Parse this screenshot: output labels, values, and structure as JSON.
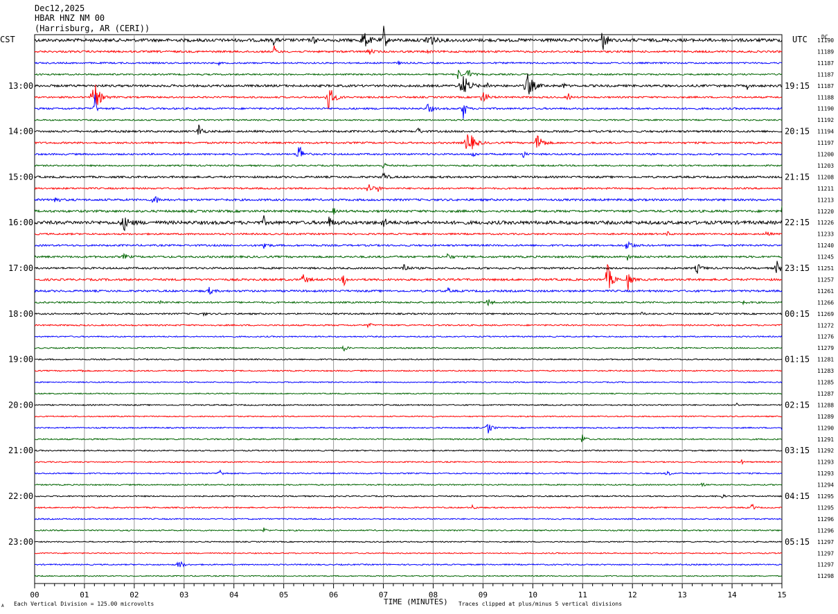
{
  "header": {
    "date": "Dec12,2025",
    "station": "HBAR HNZ NM 00",
    "location": "(Harrisburg, AR (CERI))"
  },
  "left_axis_title": "CST",
  "right_axis_title": "UTC",
  "dc_label": "DC",
  "footer": {
    "xlabel": "TIME (MINUTES)",
    "scale_note": "Each Vertical Division =  125.00 microvolts",
    "clip_note": "Traces clipped at plus/minus 5 vertical divisions",
    "corner_mark": "A"
  },
  "colors": {
    "cycle": [
      "#000000",
      "#ff0000",
      "#0000ff",
      "#006400"
    ],
    "grid": "#999999"
  },
  "chart_data": {
    "type": "line",
    "title": "HBAR HNZ NM 00",
    "xlabel": "TIME (MINUTES)",
    "xlim": [
      0,
      15
    ],
    "x_ticks": [
      "00",
      "01",
      "02",
      "03",
      "04",
      "05",
      "06",
      "07",
      "08",
      "09",
      "10",
      "11",
      "12",
      "13",
      "14",
      "15"
    ],
    "left_hour_labels": [
      "13:00",
      "14:00",
      "15:00",
      "16:00",
      "17:00",
      "18:00",
      "19:00",
      "20:00",
      "21:00",
      "22:00",
      "23:00"
    ],
    "right_hour_labels": [
      "19:15",
      "20:15",
      "21:15",
      "22:15",
      "23:15",
      "00:15",
      "01:15",
      "02:15",
      "03:15",
      "04:15",
      "05:15"
    ],
    "hour_label_rows": [
      4,
      8,
      12,
      16,
      20,
      24,
      28,
      32,
      36,
      40,
      44
    ],
    "dc_offsets": [
      11190,
      11189,
      11187,
      11187,
      11187,
      11188,
      11190,
      11192,
      11194,
      11197,
      11200,
      11203,
      11208,
      11211,
      11213,
      11220,
      11226,
      11233,
      11240,
      11245,
      11251,
      11257,
      11261,
      11266,
      11269,
      11272,
      11276,
      11279,
      11281,
      11283,
      11285,
      11287,
      11288,
      11289,
      11290,
      11291,
      11292,
      11293,
      11293,
      11294,
      11295,
      11295,
      11296,
      11296,
      11297,
      11297,
      11297,
      11298
    ],
    "traces": [
      {
        "noise": 2.2,
        "events": [
          [
            4.8,
            3,
            7
          ],
          [
            5.6,
            3,
            6
          ],
          [
            6.6,
            8,
            12
          ],
          [
            7.0,
            3,
            26
          ],
          [
            7.9,
            6,
            16
          ],
          [
            11.4,
            3,
            22
          ],
          [
            11.5,
            2,
            10
          ]
        ]
      },
      {
        "noise": 1.4,
        "events": [
          [
            4.8,
            3,
            10
          ],
          [
            6.7,
            4,
            7
          ],
          [
            7.9,
            2,
            5
          ]
        ]
      },
      {
        "noise": 1.1,
        "events": [
          [
            3.7,
            1,
            3
          ],
          [
            7.3,
            2,
            3
          ]
        ]
      },
      {
        "noise": 1.1,
        "events": [
          [
            8.5,
            3,
            10
          ],
          [
            8.7,
            5,
            9
          ]
        ]
      },
      {
        "noise": 1.6,
        "events": [
          [
            8.6,
            8,
            18
          ],
          [
            9.1,
            3,
            6
          ],
          [
            9.9,
            8,
            18
          ],
          [
            10.6,
            2,
            10
          ],
          [
            14.3,
            2,
            5
          ]
        ]
      },
      {
        "noise": 1.2,
        "events": [
          [
            1.2,
            8,
            22
          ],
          [
            5.9,
            7,
            20
          ],
          [
            9.0,
            6,
            10
          ],
          [
            10.7,
            2,
            14
          ]
        ]
      },
      {
        "noise": 1.3,
        "events": [
          [
            1.2,
            2,
            30
          ],
          [
            7.9,
            5,
            9
          ],
          [
            8.6,
            3,
            24
          ]
        ]
      },
      {
        "noise": 1.0,
        "events": [
          [
            13.5,
            1,
            3
          ]
        ]
      },
      {
        "noise": 1.4,
        "events": [
          [
            3.3,
            4,
            14
          ],
          [
            7.7,
            3,
            7
          ]
        ]
      },
      {
        "noise": 1.3,
        "events": [
          [
            8.7,
            8,
            20
          ],
          [
            10.1,
            6,
            18
          ]
        ]
      },
      {
        "noise": 1.2,
        "events": [
          [
            5.3,
            5,
            18
          ],
          [
            8.8,
            3,
            6
          ],
          [
            9.8,
            3,
            7
          ]
        ]
      },
      {
        "noise": 1.1,
        "events": [
          [
            7.0,
            4,
            5
          ]
        ]
      },
      {
        "noise": 1.4,
        "events": [
          [
            7.0,
            5,
            7
          ]
        ]
      },
      {
        "noise": 1.2,
        "events": [
          [
            6.7,
            5,
            9
          ],
          [
            6.9,
            2,
            6
          ]
        ]
      },
      {
        "noise": 1.5,
        "events": [
          [
            0.4,
            4,
            8
          ],
          [
            2.4,
            5,
            8
          ]
        ]
      },
      {
        "noise": 1.6,
        "events": [
          [
            6.0,
            3,
            5
          ],
          [
            15.0,
            2,
            7
          ]
        ]
      },
      {
        "noise": 2.4,
        "events": [
          [
            1.8,
            8,
            10
          ],
          [
            4.6,
            2,
            9
          ],
          [
            5.9,
            6,
            8
          ],
          [
            7.0,
            4,
            9
          ]
        ]
      },
      {
        "noise": 1.2,
        "events": [
          [
            12.7,
            3,
            4
          ],
          [
            14.7,
            3,
            7
          ]
        ]
      },
      {
        "noise": 1.3,
        "events": [
          [
            4.6,
            4,
            9
          ],
          [
            11.9,
            6,
            9
          ]
        ]
      },
      {
        "noise": 1.4,
        "events": [
          [
            1.8,
            5,
            4
          ],
          [
            8.3,
            4,
            6
          ],
          [
            11.9,
            3,
            4
          ]
        ]
      },
      {
        "noise": 1.3,
        "events": [
          [
            7.4,
            5,
            9
          ],
          [
            13.3,
            6,
            7
          ],
          [
            14.9,
            5,
            10
          ]
        ]
      },
      {
        "noise": 1.5,
        "events": [
          [
            5.4,
            6,
            8
          ],
          [
            6.2,
            3,
            12
          ],
          [
            11.5,
            6,
            24
          ],
          [
            11.9,
            4,
            18
          ]
        ]
      },
      {
        "noise": 1.4,
        "events": [
          [
            3.5,
            5,
            5
          ],
          [
            8.3,
            3,
            4
          ]
        ]
      },
      {
        "noise": 1.2,
        "events": [
          [
            2.5,
            4,
            4
          ],
          [
            9.1,
            4,
            7
          ],
          [
            14.2,
            4,
            4
          ]
        ]
      },
      {
        "noise": 1.1,
        "events": [
          [
            3.4,
            3,
            3
          ],
          [
            12.2,
            3,
            3
          ]
        ]
      },
      {
        "noise": 1.0,
        "events": [
          [
            6.7,
            4,
            4
          ]
        ]
      },
      {
        "noise": 0.9,
        "events": []
      },
      {
        "noise": 0.9,
        "events": [
          [
            6.2,
            4,
            6
          ]
        ]
      },
      {
        "noise": 0.9,
        "events": []
      },
      {
        "noise": 0.9,
        "events": [
          [
            0.9,
            3,
            3
          ]
        ]
      },
      {
        "noise": 0.8,
        "events": []
      },
      {
        "noise": 0.8,
        "events": []
      },
      {
        "noise": 0.9,
        "events": [
          [
            14.1,
            3,
            4
          ]
        ]
      },
      {
        "noise": 0.8,
        "events": [
          [
            8.0,
            1,
            4
          ]
        ]
      },
      {
        "noise": 0.9,
        "events": [
          [
            9.1,
            5,
            9
          ],
          [
            15.0,
            3,
            5
          ]
        ]
      },
      {
        "noise": 1.0,
        "events": [
          [
            11.0,
            3,
            12
          ]
        ]
      },
      {
        "noise": 0.9,
        "events": []
      },
      {
        "noise": 0.9,
        "events": [
          [
            14.2,
            2,
            5
          ]
        ]
      },
      {
        "noise": 0.9,
        "events": [
          [
            3.7,
            4,
            8
          ],
          [
            12.7,
            4,
            5
          ]
        ]
      },
      {
        "noise": 0.9,
        "events": [
          [
            13.4,
            2,
            5
          ]
        ]
      },
      {
        "noise": 0.9,
        "events": [
          [
            13.8,
            3,
            3
          ]
        ]
      },
      {
        "noise": 0.9,
        "events": [
          [
            8.8,
            2,
            10
          ],
          [
            14.4,
            3,
            7
          ]
        ]
      },
      {
        "noise": 0.9,
        "events": []
      },
      {
        "noise": 0.9,
        "events": [
          [
            4.6,
            3,
            5
          ]
        ]
      },
      {
        "noise": 0.8,
        "events": []
      },
      {
        "noise": 0.8,
        "events": []
      },
      {
        "noise": 0.9,
        "events": [
          [
            2.9,
            5,
            8
          ]
        ]
      },
      {
        "noise": 0.8,
        "events": []
      }
    ]
  }
}
